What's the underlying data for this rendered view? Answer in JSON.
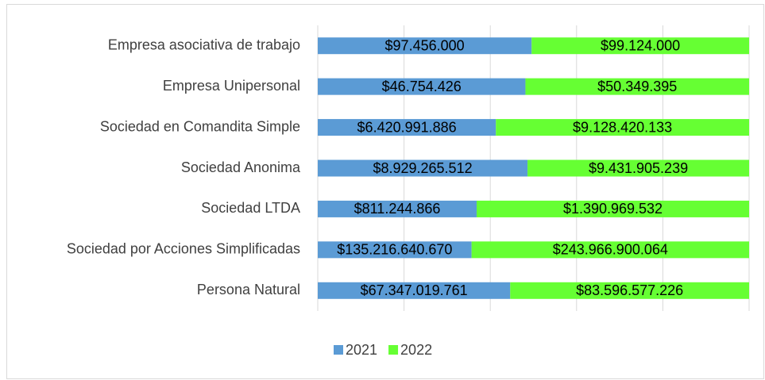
{
  "chart_data": {
    "type": "bar",
    "orientation": "horizontal",
    "stacked": "percent",
    "categories": [
      "Empresa asociativa de trabajo",
      "Empresa Unipersonal",
      "Sociedad en Comandita Simple",
      "Sociedad Anonima",
      "Sociedad LTDA",
      "Sociedad por Acciones Simplificadas",
      "Persona Natural"
    ],
    "series": [
      {
        "name": "2021",
        "color": "#5b9bd5",
        "values": [
          97456000,
          46754426,
          6420991886,
          8929265512,
          811244866,
          135216640670,
          67347019761
        ],
        "value_labels": [
          "$97.456.000",
          "$46.754.426",
          "$6.420.991.886",
          "$8.929.265.512",
          "$811.244.866",
          "$135.216.640.670",
          "$67.347.019.761"
        ]
      },
      {
        "name": "2022",
        "color": "#66ff33",
        "values": [
          99124000,
          50349395,
          9128420133,
          9431905239,
          1390969532,
          243966900064,
          83596577226
        ],
        "value_labels": [
          "$99.124.000",
          "$50.349.395",
          "$9.128.420.133",
          "$9.431.905.239",
          "$1.390.969.532",
          "$243.966.900.064",
          "$83.596.577.226"
        ]
      }
    ],
    "xlim": [
      0,
      100
    ],
    "xticks": [
      0,
      20,
      40,
      60,
      80,
      100
    ],
    "grid": true,
    "legend": "bottom"
  }
}
